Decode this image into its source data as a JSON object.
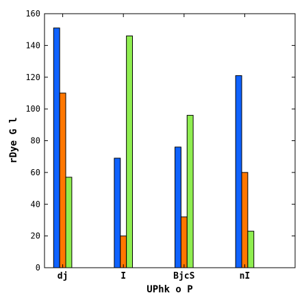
{
  "chart_data": {
    "type": "bar",
    "title": "",
    "xlabel": "UPhk o P",
    "ylabel": "rDye  G l",
    "categories": [
      "dj",
      "I",
      "BjcS",
      "nI"
    ],
    "series": [
      {
        "values": [
          151,
          69,
          76,
          121
        ],
        "color": "#0f62fe"
      },
      {
        "values": [
          110,
          20,
          32,
          60
        ],
        "color": "#ff7700"
      },
      {
        "values": [
          57,
          146,
          96,
          23
        ],
        "color": "#8fee50"
      }
    ],
    "ylim": [
      0,
      160
    ],
    "yticks": [
      0,
      20,
      40,
      60,
      80,
      100,
      120,
      140,
      160
    ],
    "grid": false,
    "legend": "none"
  }
}
